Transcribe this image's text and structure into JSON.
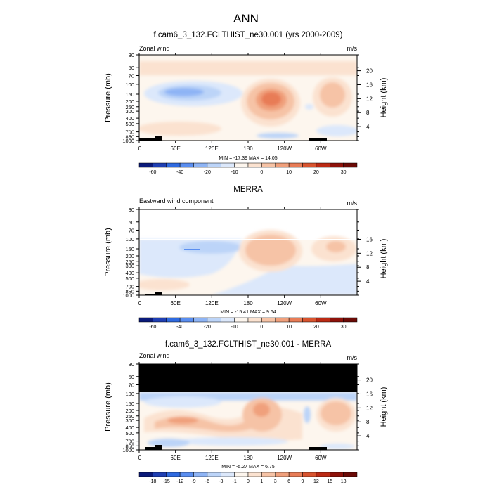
{
  "figure_title": "ANN",
  "chart_data": [
    {
      "type": "heatmap",
      "title": "f.cam6_3_132.FCLTHIST_ne30.001 (yrs 2000-2009)",
      "subtitle_left": "Zonal wind",
      "units": "m/s",
      "ylabel": "Pressure (mb)",
      "ylabel_right": "Height (km)",
      "x_ticks": [
        "0",
        "60E",
        "120E",
        "180",
        "120W",
        "60W"
      ],
      "y_ticks": [
        "30",
        "50",
        "70",
        "100",
        "150",
        "200",
        "250",
        "300",
        "400",
        "500",
        "700",
        "850",
        "1000"
      ],
      "height_ticks": [
        "4",
        "8",
        "12",
        "16",
        "20"
      ],
      "stats": "MIN = -17.39  MAX =  14.05",
      "min": -17.39,
      "max": 14.05,
      "colorbar_levels": [
        -60,
        -40,
        -20,
        -10,
        0,
        10,
        20,
        30
      ],
      "colorbar_labels": [
        "-60",
        "-40",
        "-20",
        "-10",
        "0",
        "10",
        "20",
        "30"
      ],
      "colorbar_colors": [
        "#0a1a7a",
        "#1f3fb3",
        "#2f6ae0",
        "#5a8ef0",
        "#8eb4f5",
        "#bcd4f8",
        "#dce8fb",
        "#fdf6ee",
        "#fbe2d0",
        "#f6c3a6",
        "#f0a07c",
        "#e87c56",
        "#d8542f",
        "#bb2a14",
        "#8e120a",
        "#6b0a06"
      ],
      "cells": [
        {
          "x": -60,
          "p": 60,
          "u": 10
        }
      ]
    },
    {
      "type": "heatmap",
      "title": "MERRA",
      "subtitle_left": "Eastward wind component",
      "units": "m/s",
      "ylabel": "Pressure (mb)",
      "ylabel_right": "Height (km)",
      "x_ticks": [
        "0",
        "60E",
        "120E",
        "180",
        "120W",
        "60W"
      ],
      "y_ticks": [
        "30",
        "50",
        "70",
        "100",
        "150",
        "200",
        "250",
        "300",
        "400",
        "500",
        "700",
        "850",
        "1000"
      ],
      "height_ticks": [
        "4",
        "8",
        "12",
        "16"
      ],
      "stats": "MIN = -15.41  MAX =  9.64",
      "min": -15.41,
      "max": 9.64,
      "colorbar_levels": [
        -60,
        -40,
        -20,
        -10,
        0,
        10,
        20,
        30
      ],
      "colorbar_labels": [
        "-60",
        "-40",
        "-20",
        "-10",
        "0",
        "10",
        "20",
        "30"
      ],
      "colorbar_colors": [
        "#0a1a7a",
        "#1f3fb3",
        "#2f6ae0",
        "#5a8ef0",
        "#8eb4f5",
        "#bcd4f8",
        "#dce8fb",
        "#fdf6ee",
        "#fbe2d0",
        "#f6c3a6",
        "#f0a07c",
        "#e87c56",
        "#d8542f",
        "#bb2a14",
        "#8e120a",
        "#6b0a06"
      ]
    },
    {
      "type": "heatmap",
      "title": "f.cam6_3_132.FCLTHIST_ne30.001 - MERRA",
      "subtitle_left": "Zonal wind",
      "units": "m/s",
      "ylabel": "Pressure (mb)",
      "ylabel_right": "Height (km)",
      "x_ticks": [
        "0",
        "60E",
        "120E",
        "180",
        "120W",
        "60W"
      ],
      "y_ticks": [
        "30",
        "50",
        "70",
        "100",
        "150",
        "200",
        "250",
        "300",
        "400",
        "500",
        "700",
        "850",
        "1000"
      ],
      "height_ticks": [
        "4",
        "8",
        "12",
        "16",
        "20"
      ],
      "stats": "MIN = -5.27  MAX =  6.75",
      "min": -5.27,
      "max": 6.75,
      "colorbar_levels": [
        -18,
        -15,
        -12,
        -9,
        -6,
        -3,
        -1,
        0,
        1,
        3,
        6,
        9,
        12,
        15,
        18
      ],
      "colorbar_labels": [
        "-18",
        "-15",
        "-12",
        "-9",
        "-6",
        "-3",
        "-1",
        "0",
        "1",
        "3",
        "6",
        "9",
        "12",
        "15",
        "18"
      ],
      "colorbar_colors": [
        "#0a1a7a",
        "#1f3fb3",
        "#2f6ae0",
        "#5a8ef0",
        "#8eb4f5",
        "#bcd4f8",
        "#dce8fb",
        "#fdf6ee",
        "#fbe2d0",
        "#f6c3a6",
        "#f0a07c",
        "#e87c56",
        "#d8542f",
        "#bb2a14",
        "#8e120a",
        "#6b0a06"
      ]
    }
  ]
}
